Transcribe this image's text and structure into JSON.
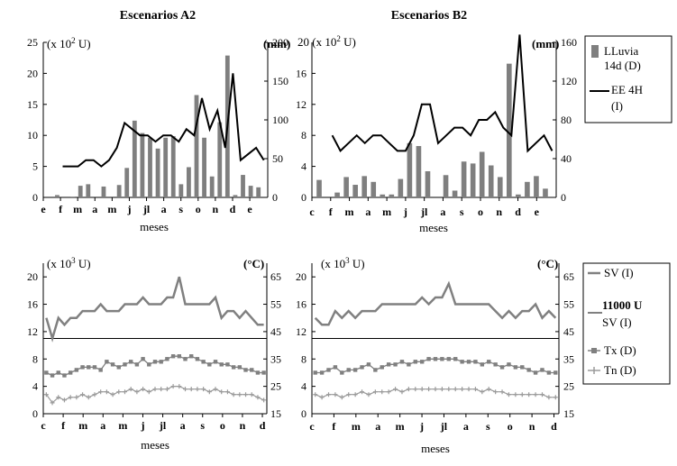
{
  "chart_data": [
    {
      "type": "bar+line",
      "title": "Escenarios A2",
      "xlabel": "meses",
      "left_unit": "(x 10",
      "left_unit_exp": "2",
      "left_unit_end": " U)",
      "right_unit": "(mm)",
      "ylim_left": [
        0,
        25
      ],
      "ylim_right": [
        0,
        200
      ],
      "left_ticks": [
        "0",
        "5",
        "10",
        "15",
        "20",
        "25"
      ],
      "right_ticks": [
        "0",
        "50",
        "100",
        "150",
        "200"
      ],
      "month_labels": [
        "e",
        "f",
        "m",
        "a",
        "m",
        "j",
        "jl",
        "a",
        "s",
        "o",
        "n",
        "d",
        "e"
      ],
      "series": [
        {
          "name": "LLuvia 14d (D)",
          "axis": "right",
          "values": [
            0,
            3,
            0,
            1,
            15,
            17,
            0,
            14,
            0,
            16,
            38,
            99,
            83,
            77,
            63,
            77,
            79,
            17,
            39,
            132,
            77,
            27,
            97,
            183,
            3,
            29,
            15,
            13
          ]
        },
        {
          "name": "EE 4H (I)",
          "axis": "left",
          "values": [
            null,
            null,
            5,
            5,
            5,
            6,
            6,
            5,
            6,
            8,
            12,
            11,
            10,
            10,
            9,
            10,
            10,
            9,
            11,
            10,
            16,
            11,
            14,
            8,
            20,
            6,
            7,
            8,
            6
          ]
        }
      ]
    },
    {
      "type": "bar+line",
      "title": "Escenarios B2",
      "xlabel": "meses",
      "left_unit": "20 (x 10",
      "left_unit_exp": "2",
      "left_unit_end": " U)",
      "right_unit": "(mm)",
      "ylim_left": [
        0,
        20
      ],
      "ylim_right": [
        0,
        160
      ],
      "left_ticks": [
        "0",
        "4",
        "8",
        "12",
        "16"
      ],
      "right_ticks": [
        "0",
        "40",
        "80",
        "120",
        "160"
      ],
      "month_labels": [
        "c",
        "f",
        "m",
        "a",
        "m",
        "j",
        "jl",
        "a",
        "s",
        "o",
        "n",
        "d",
        "e"
      ],
      "series": [
        {
          "name": "LLuvia 14d (D)",
          "axis": "right",
          "values": [
            18,
            0,
            5,
            21,
            13,
            22,
            16,
            3,
            3,
            19,
            56,
            53,
            27,
            0,
            23,
            7,
            37,
            35,
            47,
            33,
            21,
            138,
            3,
            16,
            22,
            9
          ]
        },
        {
          "name": "EE 4H (I)",
          "axis": "left",
          "values": [
            null,
            null,
            8,
            6,
            7,
            8,
            7,
            8,
            8,
            7,
            6,
            6,
            8,
            12,
            12,
            7,
            8,
            9,
            9,
            8,
            10,
            10,
            11,
            9,
            8,
            21,
            6,
            7,
            8,
            6
          ]
        }
      ]
    },
    {
      "type": "line",
      "title": "",
      "xlabel": "meses",
      "left_unit": "(x 10",
      "left_unit_exp": "3",
      "left_unit_end": " U)",
      "right_unit": "(°C)",
      "ylim_left": [
        0,
        22
      ],
      "ylim_right": [
        15,
        70
      ],
      "left_ticks": [
        "0",
        "4",
        "8",
        "12",
        "16",
        "20"
      ],
      "right_ticks": [
        "15",
        "25",
        "35",
        "45",
        "55",
        "65"
      ],
      "month_labels": [
        "c",
        "f",
        "m",
        "a",
        "m",
        "j",
        "jl",
        "a",
        "s",
        "o",
        "n",
        "d"
      ],
      "threshold": 11,
      "series": [
        {
          "name": "SV (I)",
          "axis": "left",
          "values": [
            14,
            11,
            14,
            13,
            14,
            14,
            15,
            15,
            15,
            16,
            15,
            15,
            15,
            16,
            16,
            16,
            17,
            16,
            16,
            16,
            17,
            17,
            20,
            16,
            16,
            16,
            16,
            16,
            17,
            14,
            15,
            15,
            14,
            15,
            14,
            13,
            13
          ]
        },
        {
          "name": "11000 U SV (I)",
          "axis": "left"
        },
        {
          "name": "Tx (D)",
          "axis": "right",
          "values": [
            30,
            29,
            30,
            29,
            30,
            31,
            32,
            32,
            32,
            31,
            34,
            33,
            32,
            33,
            34,
            33,
            35,
            33,
            34,
            34,
            35,
            36,
            36,
            35,
            36,
            35,
            34,
            33,
            34,
            33,
            33,
            32,
            32,
            31,
            31,
            30,
            30
          ]
        },
        {
          "name": "Tn (D)",
          "axis": "right",
          "values": [
            22,
            19,
            21,
            20,
            21,
            21,
            22,
            21,
            22,
            23,
            23,
            22,
            23,
            23,
            24,
            23,
            24,
            23,
            24,
            24,
            24,
            25,
            25,
            24,
            24,
            24,
            24,
            23,
            24,
            23,
            23,
            22,
            22,
            22,
            22,
            21,
            20
          ]
        }
      ]
    },
    {
      "type": "line",
      "title": "",
      "xlabel": "meses",
      "left_unit": "(x 10",
      "left_unit_exp": "3",
      "left_unit_end": " U)",
      "right_unit": "(°C)",
      "ylim_left": [
        0,
        22
      ],
      "ylim_right": [
        15,
        70
      ],
      "left_ticks": [
        "0",
        "4",
        "8",
        "12",
        "16",
        "20"
      ],
      "right_ticks": [
        "15",
        "25",
        "35",
        "45",
        "55",
        "65"
      ],
      "month_labels": [
        "c",
        "f",
        "m",
        "a",
        "m",
        "j",
        "jl",
        "a",
        "s",
        "o",
        "n",
        "d"
      ],
      "threshold": 11,
      "series": [
        {
          "name": "SV (I)",
          "axis": "left",
          "values": [
            14,
            13,
            13,
            15,
            14,
            15,
            14,
            15,
            15,
            15,
            16,
            16,
            16,
            16,
            16,
            16,
            17,
            16,
            17,
            17,
            19,
            16,
            16,
            16,
            16,
            16,
            16,
            15,
            14,
            15,
            14,
            15,
            15,
            16,
            14,
            15,
            14
          ]
        },
        {
          "name": "11000 U SV (I)",
          "axis": "left"
        },
        {
          "name": "Tx (D)",
          "axis": "right",
          "values": [
            30,
            30,
            31,
            32,
            30,
            31,
            31,
            32,
            33,
            31,
            32,
            33,
            33,
            34,
            33,
            34,
            34,
            35,
            35,
            35,
            35,
            35,
            34,
            34,
            34,
            33,
            34,
            33,
            32,
            33,
            32,
            32,
            31,
            30,
            31,
            30,
            30
          ]
        },
        {
          "name": "Tn (D)",
          "axis": "right",
          "values": [
            22,
            21,
            22,
            22,
            21,
            22,
            22,
            23,
            22,
            23,
            23,
            23,
            24,
            23,
            24,
            24,
            24,
            24,
            24,
            24,
            24,
            24,
            24,
            24,
            24,
            23,
            24,
            23,
            23,
            22,
            22,
            22,
            22,
            22,
            22,
            21,
            21
          ]
        }
      ]
    }
  ],
  "legend_top": [
    {
      "line1": "LLuvia",
      "line2": "14d (D)"
    },
    {
      "line1": "EE 4H",
      "line2": "(I)"
    }
  ],
  "legend_bottom": [
    {
      "line1": "SV (I)",
      "line2": ""
    },
    {
      "line1": "11000 U",
      "line2": "SV (I)"
    },
    {
      "line1": "Tx (D)",
      "line2": ""
    },
    {
      "line1": "Tn (D)",
      "line2": ""
    }
  ],
  "colors": {
    "bar": "#7f7f7f",
    "ee_line": "#000000",
    "sv_line": "#808080",
    "tx": "#808080",
    "tn": "#9a9a9a",
    "threshold": "#000000"
  }
}
